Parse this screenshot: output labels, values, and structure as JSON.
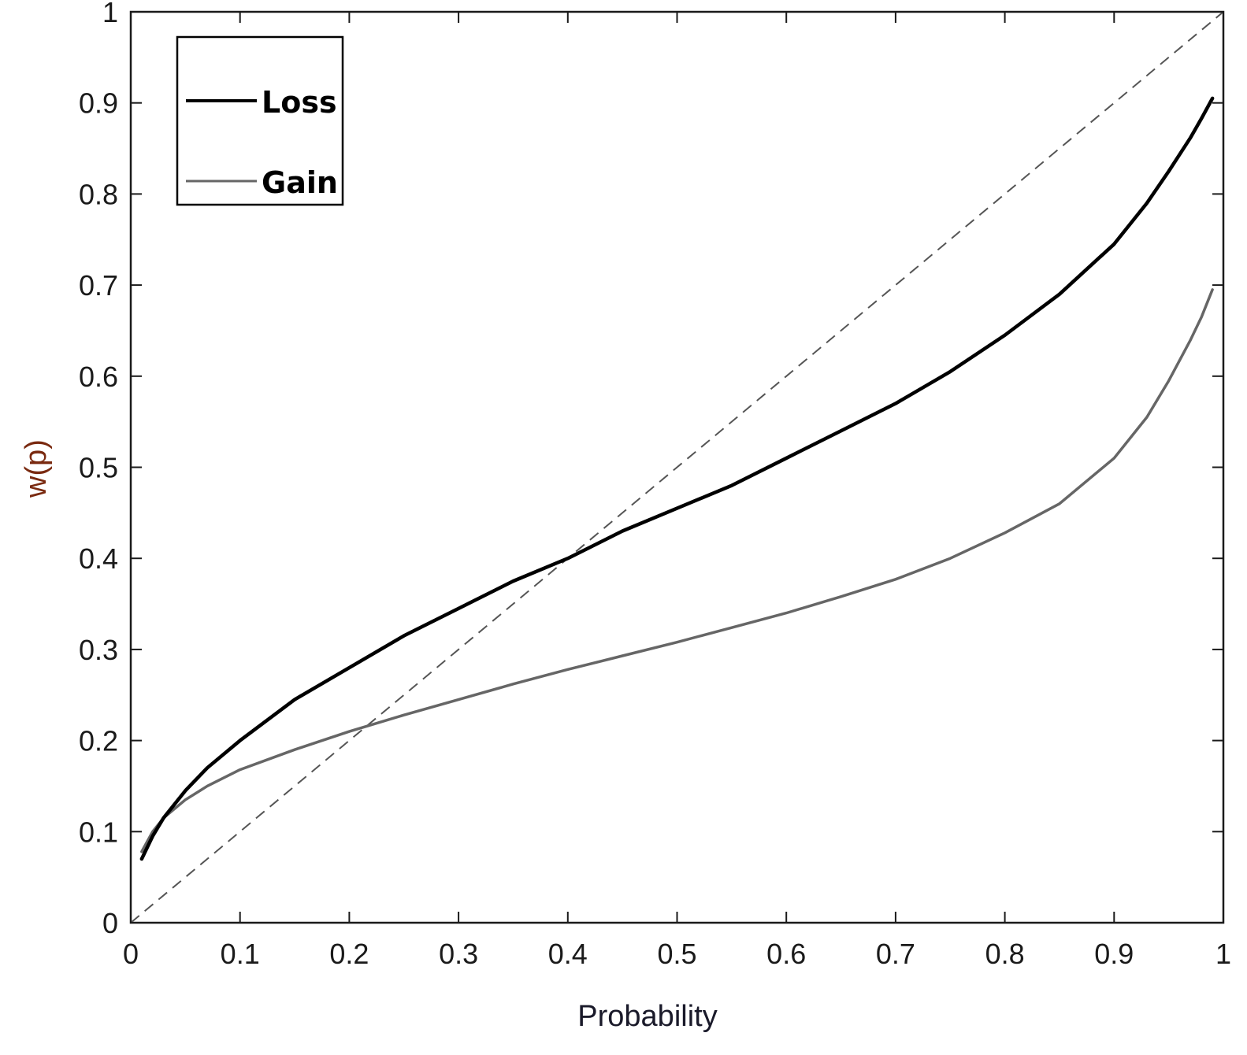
{
  "chart_data": {
    "type": "line",
    "title": "",
    "xlabel": "Probability",
    "ylabel": "w(p)",
    "xlim": [
      0,
      1
    ],
    "ylim": [
      0,
      1
    ],
    "x_ticks": [
      "0",
      "0.1",
      "0.2",
      "0.3",
      "0.4",
      "0.5",
      "0.6",
      "0.7",
      "0.8",
      "0.9",
      "1"
    ],
    "y_ticks": [
      "0",
      "0.1",
      "0.2",
      "0.3",
      "0.4",
      "0.5",
      "0.6",
      "0.7",
      "0.8",
      "0.9",
      "1"
    ],
    "grid": false,
    "legend_position": "top-left",
    "series": [
      {
        "name": "Loss",
        "color": "#000000",
        "x": [
          0.01,
          0.02,
          0.03,
          0.05,
          0.07,
          0.1,
          0.15,
          0.2,
          0.25,
          0.3,
          0.35,
          0.4,
          0.45,
          0.5,
          0.55,
          0.6,
          0.65,
          0.7,
          0.75,
          0.8,
          0.85,
          0.9,
          0.93,
          0.95,
          0.97,
          0.98,
          0.99
        ],
        "y": [
          0.07,
          0.095,
          0.115,
          0.145,
          0.17,
          0.2,
          0.245,
          0.28,
          0.315,
          0.345,
          0.375,
          0.4,
          0.43,
          0.455,
          0.48,
          0.51,
          0.54,
          0.57,
          0.605,
          0.645,
          0.69,
          0.745,
          0.79,
          0.825,
          0.862,
          0.883,
          0.905
        ]
      },
      {
        "name": "Gain",
        "color": "#666666",
        "x": [
          0.01,
          0.02,
          0.03,
          0.05,
          0.07,
          0.1,
          0.15,
          0.2,
          0.25,
          0.3,
          0.35,
          0.4,
          0.45,
          0.5,
          0.55,
          0.6,
          0.65,
          0.7,
          0.75,
          0.8,
          0.85,
          0.9,
          0.93,
          0.95,
          0.97,
          0.98,
          0.99
        ],
        "y": [
          0.078,
          0.1,
          0.115,
          0.135,
          0.15,
          0.168,
          0.19,
          0.21,
          0.228,
          0.245,
          0.262,
          0.278,
          0.293,
          0.308,
          0.324,
          0.34,
          0.358,
          0.377,
          0.4,
          0.428,
          0.46,
          0.51,
          0.555,
          0.595,
          0.64,
          0.665,
          0.695
        ]
      }
    ],
    "reference_line": {
      "style": "dashed",
      "color": "#555555",
      "x": [
        0,
        1
      ],
      "y": [
        0,
        1
      ]
    },
    "colors": {
      "axis": "#1a1a1a",
      "ylabel": "#7a2a10",
      "xlabel": "#1a1a2a"
    }
  }
}
